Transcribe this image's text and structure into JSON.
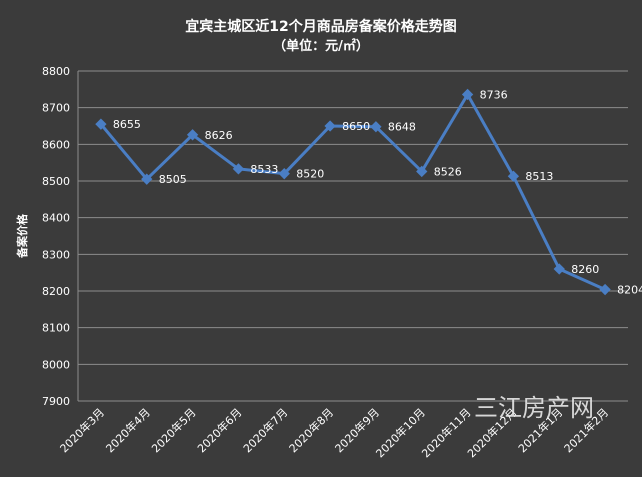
{
  "chart_data": {
    "type": "line",
    "title": "宜宾主城区近12个月商品房备案价格走势图",
    "subtitle": "（单位：元/㎡）",
    "xlabel": "",
    "ylabel": "备案价格",
    "categories": [
      "2020年3月",
      "2020年4月",
      "2020年5月",
      "2020年6月",
      "2020年7月",
      "2020年8月",
      "2020年9月",
      "2020年10月",
      "2020年11月",
      "2020年12月",
      "2021年1月",
      "2021年2月"
    ],
    "series": [
      {
        "values": [
          8655,
          8505,
          8626,
          8533,
          8520,
          8650,
          8648,
          8526,
          8736,
          8513,
          8260,
          8204
        ]
      }
    ],
    "ylim": [
      7900,
      8800
    ],
    "yticks": [
      7900,
      8000,
      8100,
      8200,
      8300,
      8400,
      8500,
      8600,
      8700,
      8800
    ],
    "grid": true,
    "legend": "none"
  },
  "watermark": "三江房产网",
  "colors": {
    "background": "#3b3b3b",
    "line": "#4a7ec4",
    "grid": "#8c8c8c",
    "text": "#ffffff"
  }
}
